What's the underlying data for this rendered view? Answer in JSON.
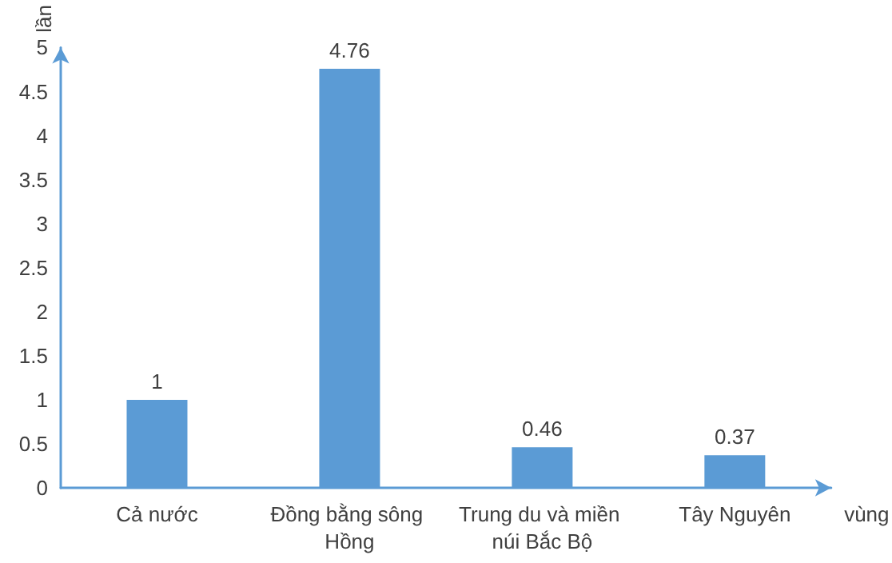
{
  "chart_data": {
    "type": "bar",
    "xlabel": "vùng",
    "ylabel": "lần",
    "categories": [
      "Cả nước",
      "Đồng bằng sông Hồng",
      "Trung du và miền núi Bắc Bộ",
      "Tây Nguyên"
    ],
    "values": [
      1,
      4.76,
      0.46,
      0.37
    ],
    "color": "#5b9bd5",
    "ylim": [
      0,
      5
    ],
    "yticks": [
      0,
      0.5,
      1,
      1.5,
      2,
      2.5,
      3,
      3.5,
      4,
      4.5,
      5
    ],
    "grid": false,
    "data_labels": true
  }
}
